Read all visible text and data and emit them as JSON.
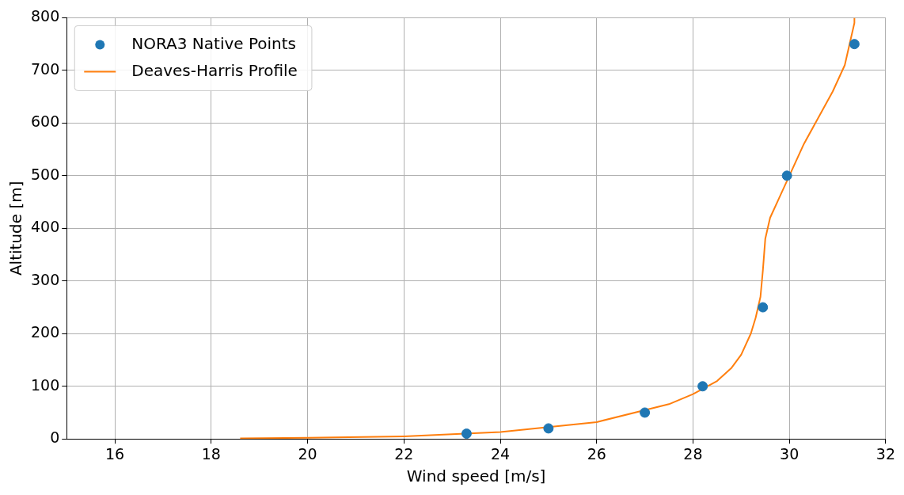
{
  "chart_data": {
    "type": "scatter",
    "xlabel": "Wind speed [m/s]",
    "ylabel": "Altitude [m]",
    "xlim": [
      15,
      32
    ],
    "xticks": [
      16,
      18,
      20,
      22,
      24,
      26,
      28,
      30,
      32
    ],
    "ylim": [
      0,
      800
    ],
    "yticks": [
      0,
      100,
      200,
      300,
      400,
      500,
      600,
      700,
      800
    ],
    "grid": true,
    "legend": "top left",
    "series": [
      {
        "name": "NORA3 Native Points",
        "marker": "circle",
        "color": "#1f77b4",
        "x": [
          23.3,
          25.0,
          27.0,
          28.2,
          29.45,
          29.95,
          31.35
        ],
        "values": [
          10,
          20,
          50,
          100,
          250,
          500,
          750
        ]
      },
      {
        "name": "Deaves-Harris Profile",
        "type": "line",
        "marker": "none",
        "color": "#ff7f0e",
        "x": [
          18.6,
          20,
          22,
          24,
          26,
          27.5,
          28,
          28.5,
          28.8,
          29.0,
          29.2,
          29.3,
          29.4,
          29.45,
          29.5,
          29.6,
          29.8,
          30.0,
          30.3,
          30.6,
          30.9,
          31.15,
          31.35,
          31.35
        ],
        "values": [
          1,
          2,
          5,
          13,
          32,
          66,
          85,
          110,
          135,
          160,
          200,
          230,
          270,
          320,
          380,
          420,
          460,
          500,
          560,
          610,
          660,
          710,
          790,
          800
        ]
      }
    ]
  }
}
